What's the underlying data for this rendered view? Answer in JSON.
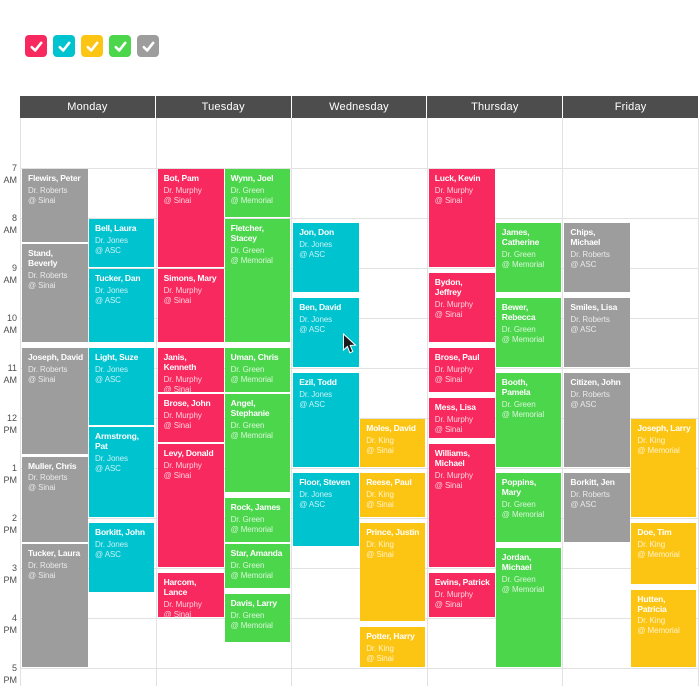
{
  "colors": {
    "pink": "#f8295f",
    "cyan": "#00c3d0",
    "yellow": "#fdc513",
    "green": "#4cd64c",
    "gray": "#9d9d9d",
    "header": "#4d4d4d"
  },
  "legend": {
    "items": [
      {
        "id": "pink",
        "color": "#f8295f"
      },
      {
        "id": "cyan",
        "color": "#00c3d0"
      },
      {
        "id": "yellow",
        "color": "#fdc513"
      },
      {
        "id": "green",
        "color": "#4cd64c"
      },
      {
        "id": "gray",
        "color": "#9d9d9d"
      }
    ]
  },
  "calendar": {
    "days": [
      "Monday",
      "Tuesday",
      "Wednesday",
      "Thursday",
      "Friday"
    ],
    "time_labels": [
      "7 AM",
      "8 AM",
      "9 AM",
      "10 AM",
      "11 AM",
      "12 PM",
      "1 PM",
      "2 PM",
      "3 PM",
      "4 PM",
      "5 PM"
    ]
  },
  "events": [
    {
      "day": 0,
      "track": 0,
      "color": "gray",
      "name": "Flewirs, Peter",
      "doctor": "Dr. Roberts",
      "location": "@ Sinai",
      "start": "7:00",
      "end": "8:30"
    },
    {
      "day": 0,
      "track": 0,
      "color": "gray",
      "name": "Stand, Beverly",
      "doctor": "Dr. Roberts",
      "location": "@ Sinai",
      "start": "8:30",
      "end": "10:30"
    },
    {
      "day": 0,
      "track": 0,
      "color": "gray",
      "name": "Joseph, David",
      "doctor": "Dr. Roberts",
      "location": "@ Sinai",
      "start": "10:35",
      "end": "12:45"
    },
    {
      "day": 0,
      "track": 0,
      "color": "gray",
      "name": "Muller, Chris",
      "doctor": "Dr. Roberts",
      "location": "@ Sinai",
      "start": "12:45",
      "end": "14:30"
    },
    {
      "day": 0,
      "track": 0,
      "color": "gray",
      "name": "Tucker, Laura",
      "doctor": "Dr. Roberts",
      "location": "@ Sinai",
      "start": "14:30",
      "end": "17:00"
    },
    {
      "day": 0,
      "track": 1,
      "color": "cyan",
      "name": "Bell, Laura",
      "doctor": "Dr. Jones",
      "location": "@ ASC",
      "start": "8:00",
      "end": "9:00"
    },
    {
      "day": 0,
      "track": 1,
      "color": "cyan",
      "name": "Tucker, Dan",
      "doctor": "Dr. Jones",
      "location": "@ ASC",
      "start": "9:00",
      "end": "10:30"
    },
    {
      "day": 0,
      "track": 1,
      "color": "cyan",
      "name": "Light, Suze",
      "doctor": "Dr. Jones",
      "location": "@ ASC",
      "start": "10:35",
      "end": "12:10"
    },
    {
      "day": 0,
      "track": 1,
      "color": "cyan",
      "name": "Armstrong, Pat",
      "doctor": "Dr. Jones",
      "location": "@ ASC",
      "start": "12:10",
      "end": "14:00"
    },
    {
      "day": 0,
      "track": 1,
      "color": "cyan",
      "name": "Borkitt, John",
      "doctor": "Dr. Jones",
      "location": "@ ASC",
      "start": "14:05",
      "end": "15:30"
    },
    {
      "day": 1,
      "track": 0,
      "color": "pink",
      "name": "Bot, Pam",
      "doctor": "Dr. Murphy",
      "location": "@ Sinai",
      "start": "7:00",
      "end": "9:00"
    },
    {
      "day": 1,
      "track": 0,
      "color": "pink",
      "name": "Simons, Mary",
      "doctor": "Dr. Murphy",
      "location": "@ Sinai",
      "start": "9:00",
      "end": "10:30"
    },
    {
      "day": 1,
      "track": 0,
      "color": "pink",
      "name": "Janis, Kenneth",
      "doctor": "Dr. Murphy",
      "location": "@ Sinai",
      "start": "10:35",
      "end": "11:30"
    },
    {
      "day": 1,
      "track": 0,
      "color": "pink",
      "name": "Brose, John",
      "doctor": "Dr. Murphy",
      "location": "@ Sinai",
      "start": "11:30",
      "end": "12:30"
    },
    {
      "day": 1,
      "track": 0,
      "color": "pink",
      "name": "Levy, Donald",
      "doctor": "Dr. Murphy",
      "location": "@ Sinai",
      "start": "12:30",
      "end": "15:00"
    },
    {
      "day": 1,
      "track": 0,
      "color": "pink",
      "name": "Harcom, Lance",
      "doctor": "Dr. Murphy",
      "location": "@ Sinai",
      "start": "15:05",
      "end": "16:00"
    },
    {
      "day": 1,
      "track": 1,
      "color": "green",
      "name": "Wynn, Joel",
      "doctor": "Dr. Green",
      "location": "@ Memorial",
      "start": "7:00",
      "end": "8:00"
    },
    {
      "day": 1,
      "track": 1,
      "color": "green",
      "name": "Fletcher, Stacey",
      "doctor": "Dr. Green",
      "location": "@ Memorial",
      "start": "8:00",
      "end": "10:30"
    },
    {
      "day": 1,
      "track": 1,
      "color": "green",
      "name": "Uman, Chris",
      "doctor": "Dr. Green",
      "location": "@ Memorial",
      "start": "10:35",
      "end": "11:30"
    },
    {
      "day": 1,
      "track": 1,
      "color": "green",
      "name": "Angel, Stephanie",
      "doctor": "Dr. Green",
      "location": "@ Memorial",
      "start": "11:30",
      "end": "13:30"
    },
    {
      "day": 1,
      "track": 1,
      "color": "green",
      "name": "Rock, James",
      "doctor": "Dr. Green",
      "location": "@ Memorial",
      "start": "13:35",
      "end": "14:30"
    },
    {
      "day": 1,
      "track": 1,
      "color": "green",
      "name": "Star, Amanda",
      "doctor": "Dr. Green",
      "location": "@ Memorial",
      "start": "14:30",
      "end": "15:25"
    },
    {
      "day": 1,
      "track": 1,
      "color": "green",
      "name": "Davis, Larry",
      "doctor": "Dr. Green",
      "location": "@ Memorial",
      "start": "15:30",
      "end": "16:30"
    },
    {
      "day": 2,
      "track": 0,
      "color": "cyan",
      "name": "Jon, Don",
      "doctor": "Dr. Jones",
      "location": "@ ASC",
      "start": "8:05",
      "end": "9:30"
    },
    {
      "day": 2,
      "track": 0,
      "color": "cyan",
      "name": "Ben, David",
      "doctor": "Dr. Jones",
      "location": "@ ASC",
      "start": "9:35",
      "end": "11:00"
    },
    {
      "day": 2,
      "track": 0,
      "color": "cyan",
      "name": "Ezil, Todd",
      "doctor": "Dr. Jones",
      "location": "@ ASC",
      "start": "11:05",
      "end": "13:00"
    },
    {
      "day": 2,
      "track": 0,
      "color": "cyan",
      "name": "Floor, Steven",
      "doctor": "Dr. Jones",
      "location": "@ ASC",
      "start": "13:05",
      "end": "14:35"
    },
    {
      "day": 2,
      "track": 1,
      "color": "yellow",
      "name": "Moles, David",
      "doctor": "Dr. King",
      "location": "@ Sinai",
      "start": "12:00",
      "end": "13:00"
    },
    {
      "day": 2,
      "track": 1,
      "color": "yellow",
      "name": "Reese, Paul",
      "doctor": "Dr. King",
      "location": "@ Sinai",
      "start": "13:05",
      "end": "14:00"
    },
    {
      "day": 2,
      "track": 1,
      "color": "yellow",
      "name": "Prince, Justin",
      "doctor": "Dr. King",
      "location": "@ Sinai",
      "start": "14:05",
      "end": "16:05"
    },
    {
      "day": 2,
      "track": 1,
      "color": "yellow",
      "name": "Potter, Harry",
      "doctor": "Dr. King",
      "location": "@ Sinai",
      "start": "16:10",
      "end": "17:00"
    },
    {
      "day": 3,
      "track": 0,
      "color": "pink",
      "name": "Luck, Kevin",
      "doctor": "Dr. Murphy",
      "location": "@ Sinai",
      "start": "7:00",
      "end": "9:00"
    },
    {
      "day": 3,
      "track": 0,
      "color": "pink",
      "name": "Bydon, Jeffrey",
      "doctor": "Dr. Murphy",
      "location": "@ Sinai",
      "start": "9:05",
      "end": "10:30"
    },
    {
      "day": 3,
      "track": 0,
      "color": "pink",
      "name": "Brose, Paul",
      "doctor": "Dr. Murphy",
      "location": "@ Sinai",
      "start": "10:35",
      "end": "11:30"
    },
    {
      "day": 3,
      "track": 0,
      "color": "pink",
      "name": "Mess, Lisa",
      "doctor": "Dr. Murphy",
      "location": "@ Sinai",
      "start": "11:35",
      "end": "12:25"
    },
    {
      "day": 3,
      "track": 0,
      "color": "pink",
      "name": "Williams, Michael",
      "doctor": "Dr. Murphy",
      "location": "@ Sinai",
      "start": "12:30",
      "end": "15:00"
    },
    {
      "day": 3,
      "track": 0,
      "color": "pink",
      "name": "Ewins, Patrick",
      "doctor": "Dr. Murphy",
      "location": "@ Sinai",
      "start": "15:05",
      "end": "16:00"
    },
    {
      "day": 3,
      "track": 1,
      "color": "green",
      "name": "James, Catherine",
      "doctor": "Dr. Green",
      "location": "@ Memorial",
      "start": "8:05",
      "end": "9:30"
    },
    {
      "day": 3,
      "track": 1,
      "color": "green",
      "name": "Bewer, Rebecca",
      "doctor": "Dr. Green",
      "location": "@ Memorial",
      "start": "9:35",
      "end": "11:00"
    },
    {
      "day": 3,
      "track": 1,
      "color": "green",
      "name": "Booth, Pamela",
      "doctor": "Dr. Green",
      "location": "@ Memorial",
      "start": "11:05",
      "end": "13:00"
    },
    {
      "day": 3,
      "track": 1,
      "color": "green",
      "name": "Poppins, Mary",
      "doctor": "Dr. Green",
      "location": "@ Memorial",
      "start": "13:05",
      "end": "14:30"
    },
    {
      "day": 3,
      "track": 1,
      "color": "green",
      "name": "Jordan, Michael",
      "doctor": "Dr. Green",
      "location": "@ Memorial",
      "start": "14:35",
      "end": "17:00"
    },
    {
      "day": 4,
      "track": 0,
      "color": "gray",
      "name": "Chips, Michael",
      "doctor": "Dr. Roberts",
      "location": "@ ASC",
      "start": "8:05",
      "end": "9:30"
    },
    {
      "day": 4,
      "track": 0,
      "color": "gray",
      "name": "Smiles, Lisa",
      "doctor": "Dr. Roberts",
      "location": "@ ASC",
      "start": "9:35",
      "end": "11:00"
    },
    {
      "day": 4,
      "track": 0,
      "color": "gray",
      "name": "Citizen, John",
      "doctor": "Dr. Roberts",
      "location": "@ ASC",
      "start": "11:05",
      "end": "13:00"
    },
    {
      "day": 4,
      "track": 0,
      "color": "gray",
      "name": "Borkitt, Jen",
      "doctor": "Dr. Roberts",
      "location": "@ ASC",
      "start": "13:05",
      "end": "14:30"
    },
    {
      "day": 4,
      "track": 1,
      "color": "yellow",
      "name": "Joseph, Larry",
      "doctor": "Dr. King",
      "location": "@ Memorial",
      "start": "12:00",
      "end": "14:00"
    },
    {
      "day": 4,
      "track": 1,
      "color": "yellow",
      "name": "Doe, Tim",
      "doctor": "Dr. King",
      "location": "@ Memorial",
      "start": "14:05",
      "end": "15:20"
    },
    {
      "day": 4,
      "track": 1,
      "color": "yellow",
      "name": "Hutten, Patricia",
      "doctor": "Dr. King",
      "location": "@ Memorial",
      "start": "15:25",
      "end": "17:00"
    }
  ]
}
